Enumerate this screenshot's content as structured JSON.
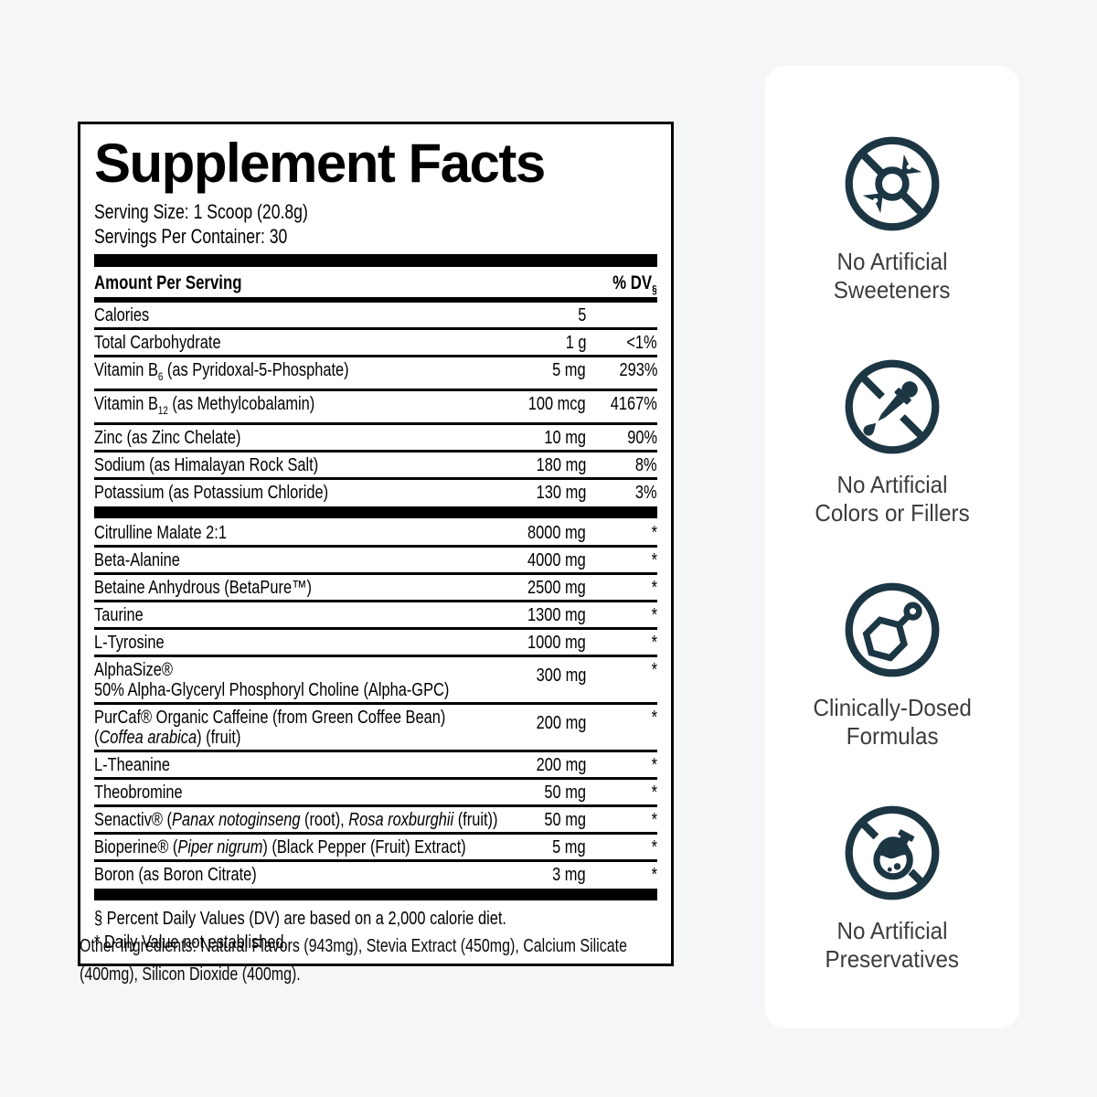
{
  "colors": {
    "page_bg": "#f4f6f8",
    "panel_bg": "#ffffff",
    "panel_text": "#000000",
    "icon_navy": "#1c3644",
    "badge_text": "#3c3c3c"
  },
  "label": {
    "title": "Supplement Facts",
    "serving_size": "Serving Size: 1 Scoop (20.8g)",
    "servings_per_container": "Servings Per Container: 30",
    "header": {
      "amount": "Amount Per Serving",
      "dv": "% DV",
      "dv_sub": "§"
    },
    "daily_value_rows": [
      {
        "parts": [
          {
            "text": "Calories"
          }
        ],
        "amount": "5",
        "dv": ""
      },
      {
        "parts": [
          {
            "text": "Total Carbohydrate"
          }
        ],
        "amount": "1 g",
        "dv": "<1%"
      },
      {
        "parts": [
          {
            "text": "Vitamin B"
          },
          {
            "text": "6",
            "sub": true
          },
          {
            "text": " (as Pyridoxal-5-Phosphate)"
          }
        ],
        "amount": "5 mg",
        "dv": "293%"
      },
      {
        "parts": [
          {
            "text": "Vitamin B"
          },
          {
            "text": "12",
            "sub": true
          },
          {
            "text": " (as Methylcobalamin)"
          }
        ],
        "amount": "100 mcg",
        "dv": "4167%"
      },
      {
        "parts": [
          {
            "text": "Zinc (as Zinc Chelate)"
          }
        ],
        "amount": "10 mg",
        "dv": "90%"
      },
      {
        "parts": [
          {
            "text": "Sodium (as Himalayan Rock Salt)"
          }
        ],
        "amount": "180 mg",
        "dv": "8%"
      },
      {
        "parts": [
          {
            "text": "Potassium (as Potassium Chloride)"
          }
        ],
        "amount": "130 mg",
        "dv": "3%"
      }
    ],
    "active_rows": [
      {
        "parts": [
          {
            "text": "Citrulline Malate 2:1"
          }
        ],
        "amount": "8000 mg",
        "dv": "*"
      },
      {
        "parts": [
          {
            "text": "Beta-Alanine"
          }
        ],
        "amount": "4000 mg",
        "dv": "*"
      },
      {
        "parts": [
          {
            "text": "Betaine Anhydrous (BetaPure™)"
          }
        ],
        "amount": "2500 mg",
        "dv": "*"
      },
      {
        "parts": [
          {
            "text": "Taurine"
          }
        ],
        "amount": "1300 mg",
        "dv": "*"
      },
      {
        "parts": [
          {
            "text": "L-Tyrosine"
          }
        ],
        "amount": "1000 mg",
        "dv": "*"
      },
      {
        "parts": [
          {
            "text": "AlphaSize®"
          }
        ],
        "line2": [
          {
            "text": "50% Alpha-Glyceryl Phosphoryl Choline (Alpha-GPC)"
          }
        ],
        "amount": "300 mg",
        "dv": "*"
      },
      {
        "parts": [
          {
            "text": "PurCaf® Organic Caffeine (from Green Coffee Bean)"
          }
        ],
        "line2": [
          {
            "text": "("
          },
          {
            "text": "Coffea arabica",
            "italic": true
          },
          {
            "text": ") (fruit)"
          }
        ],
        "amount": "200 mg",
        "dv": "*"
      },
      {
        "parts": [
          {
            "text": "L-Theanine"
          }
        ],
        "amount": "200 mg",
        "dv": "*"
      },
      {
        "parts": [
          {
            "text": "Theobromine"
          }
        ],
        "amount": "50 mg",
        "dv": "*"
      },
      {
        "parts": [
          {
            "text": "Senactiv® ("
          },
          {
            "text": "Panax notoginseng",
            "italic": true
          },
          {
            "text": " (root), "
          },
          {
            "text": "Rosa roxburghii",
            "italic": true
          },
          {
            "text": " (fruit))"
          }
        ],
        "amount": "50 mg",
        "dv": "*"
      },
      {
        "parts": [
          {
            "text": "Bioperine® ("
          },
          {
            "text": "Piper nigrum",
            "italic": true
          },
          {
            "text": ") (Black Pepper (Fruit) Extract)"
          }
        ],
        "amount": "5 mg",
        "dv": "*"
      },
      {
        "parts": [
          {
            "text": "Boron (as Boron Citrate)"
          }
        ],
        "amount": "3 mg",
        "dv": "*"
      }
    ],
    "footnotes": [
      "§ Percent Daily Values (DV) are based on a 2,000 calorie diet.",
      "* Daily Value not established."
    ],
    "other_ingredients_lines": [
      "Other Ingredients: Natural Flavors (943mg), Stevia Extract (450mg), Calcium Silicate",
      "(400mg), Silicon Dioxide (400mg)."
    ]
  },
  "badges": [
    {
      "icon": "no-artificial-sweeteners-icon",
      "lines": [
        "No Artificial",
        "Sweeteners"
      ]
    },
    {
      "icon": "no-artificial-colors-icon",
      "lines": [
        "No Artificial",
        "Colors or Fillers"
      ]
    },
    {
      "icon": "clinically-dosed-icon",
      "lines": [
        "Clinically-Dosed",
        "Formulas"
      ]
    },
    {
      "icon": "no-artificial-preservatives-icon",
      "lines": [
        "No Artificial",
        "Preservatives"
      ]
    }
  ]
}
